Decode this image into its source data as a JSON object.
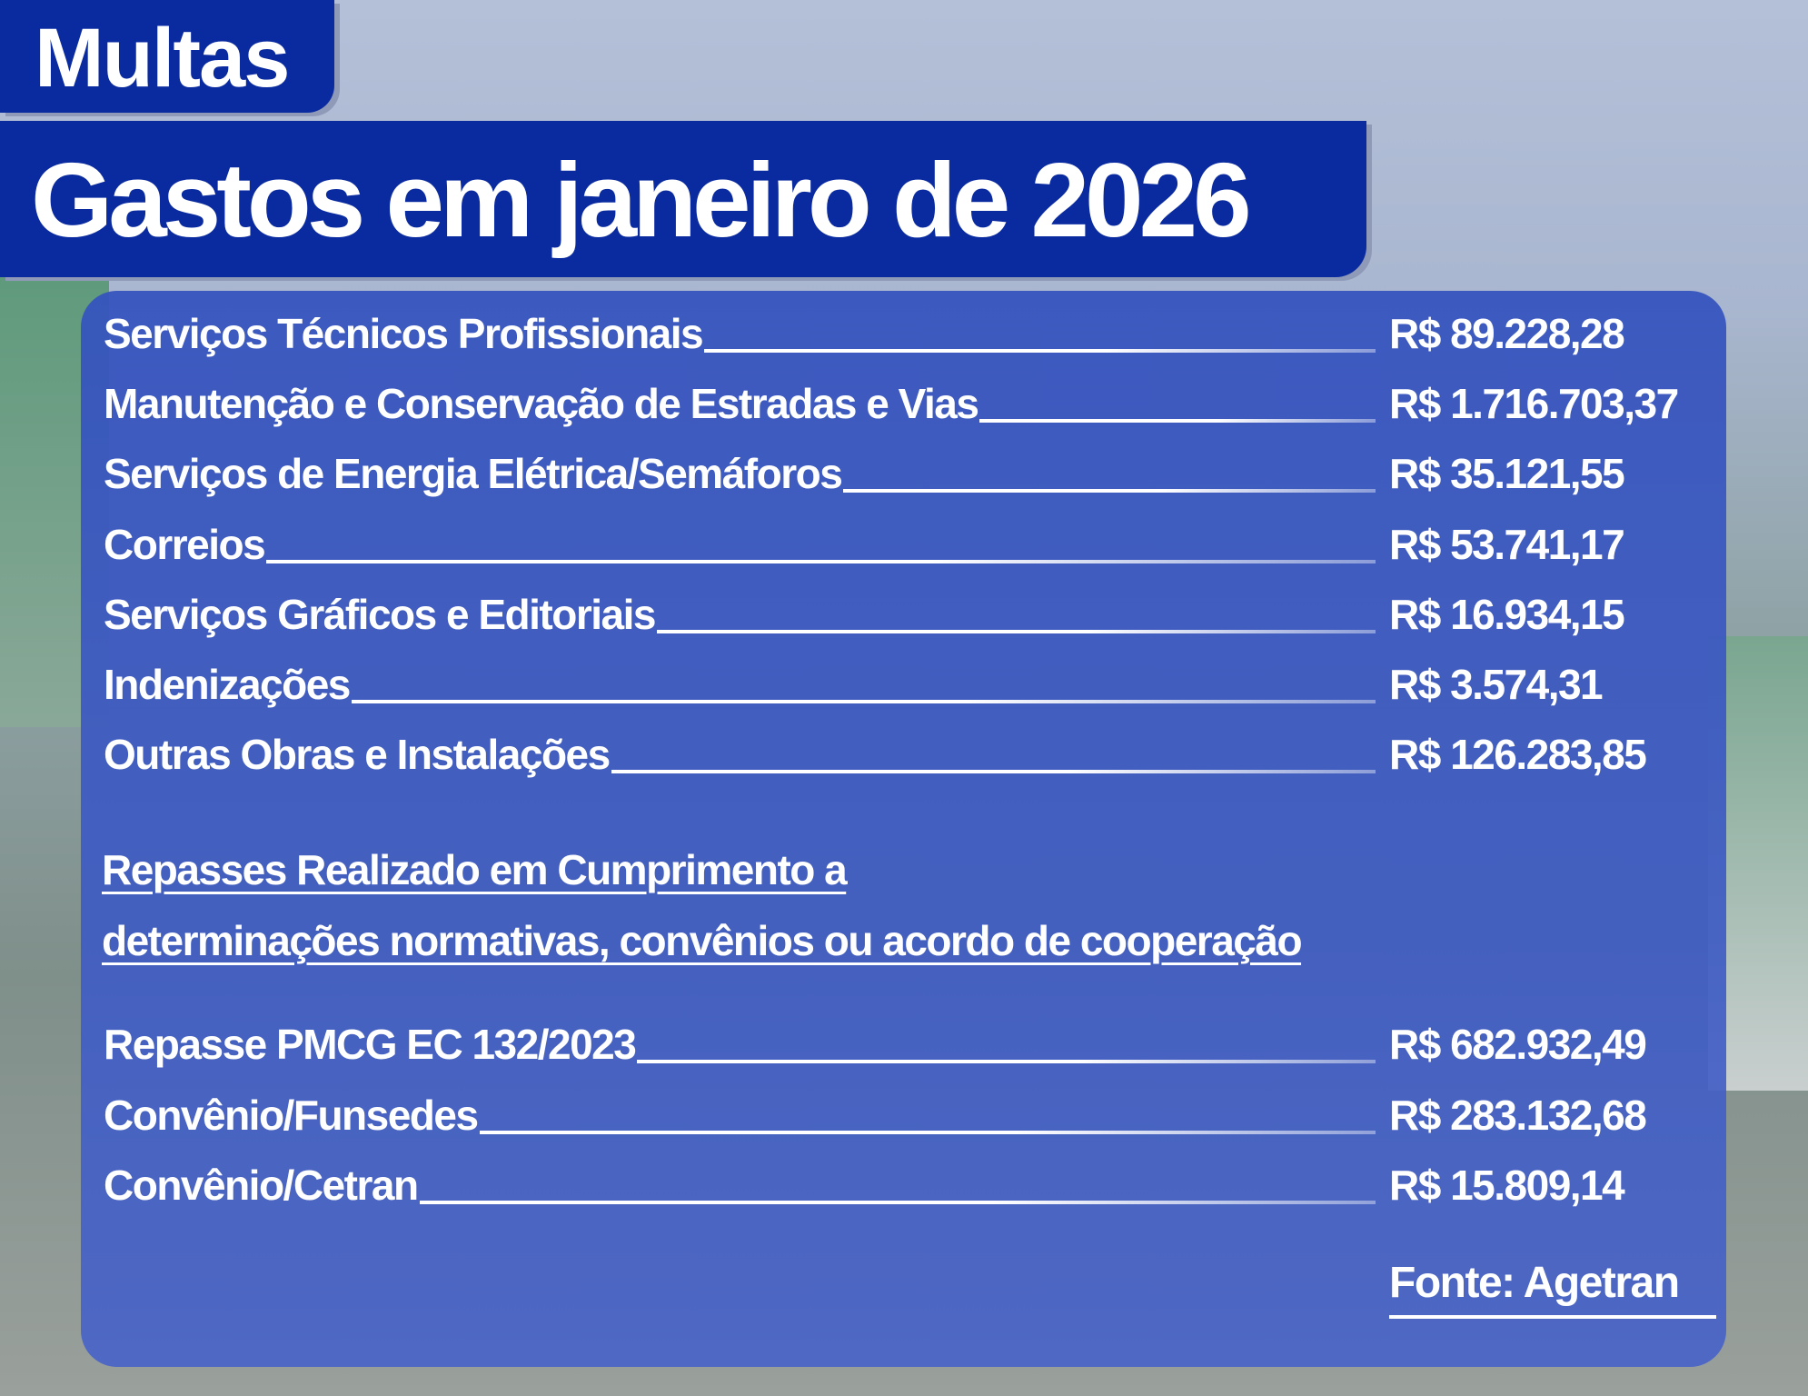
{
  "tag": "Multas",
  "title": "Gastos em janeiro de 2026",
  "expenses": [
    {
      "label": "Serviços Técnicos Profissionais",
      "value": "R$ 89.228,28"
    },
    {
      "label": "Manutenção e Conservação de Estradas e Vias",
      "value": "R$ 1.716.703,37"
    },
    {
      "label": "Serviços de Energia Elétrica/Semáforos",
      "value": "R$ 35.121,55"
    },
    {
      "label": "Correios",
      "value": "R$ 53.741,17"
    },
    {
      "label": "Serviços Gráficos e Editoriais",
      "value": "R$ 16.934,15"
    },
    {
      "label": "Indenizações",
      "value": "R$ 3.574,31"
    },
    {
      "label": "Outras Obras e Instalações",
      "value": "R$ 126.283,85"
    }
  ],
  "transfers_heading": [
    "Repasses Realizado em Cumprimento a",
    "determinações normativas, convênios ou acordo de cooperação"
  ],
  "transfers": [
    {
      "label": "Repasse PMCG EC 132/2023",
      "value": "R$ 682.932,49"
    },
    {
      "label": "Convênio/Funsedes",
      "value": "R$ 283.132,68"
    },
    {
      "label": "Convênio/Cetran",
      "value": "R$ 15.809,14"
    }
  ],
  "source": "Fonte: Agetran",
  "colors": {
    "header_blue": "#0a2aa0",
    "panel_blue": "#3f5fc0",
    "text": "#ffffff"
  }
}
